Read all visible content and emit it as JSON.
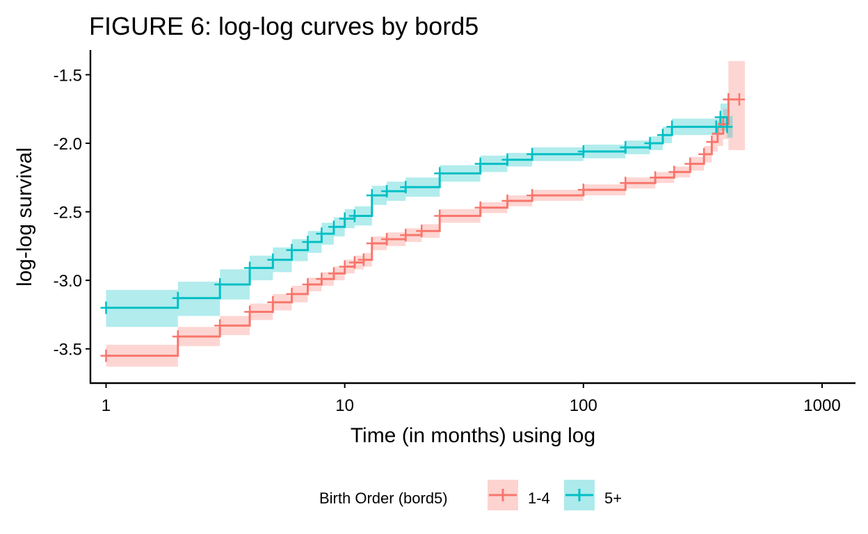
{
  "chart_data": {
    "type": "line",
    "title": "FIGURE 6: log-log curves by bord5",
    "xlabel": "Time (in months) using log",
    "ylabel": "log-log survival",
    "x_scale": "log10",
    "xlim": [
      0.86,
      1380
    ],
    "ylim": [
      -3.75,
      -1.32
    ],
    "x_ticks": [
      1,
      10,
      100,
      1000
    ],
    "x_tick_labels": [
      "1",
      "10",
      "100",
      "1000"
    ],
    "y_ticks": [
      -3.5,
      -3.0,
      -2.5,
      -2.0,
      -1.5
    ],
    "y_tick_labels": [
      "-3.5",
      "-3.0",
      "-2.5",
      "-2.0",
      "-1.5"
    ],
    "grid": false,
    "legend": {
      "title": "Birth Order (bord5)",
      "position": "bottom"
    },
    "series": [
      {
        "name": "1-4",
        "color": "#F8766D",
        "band_color": "#F8766D",
        "points": [
          {
            "t": 1,
            "y": -3.55,
            "lo": -3.63,
            "hi": -3.47
          },
          {
            "t": 2,
            "y": -3.41,
            "lo": -3.48,
            "hi": -3.34
          },
          {
            "t": 3,
            "y": -3.33,
            "lo": -3.4,
            "hi": -3.26
          },
          {
            "t": 4,
            "y": -3.23,
            "lo": -3.29,
            "hi": -3.17
          },
          {
            "t": 5,
            "y": -3.16,
            "lo": -3.22,
            "hi": -3.1
          },
          {
            "t": 6,
            "y": -3.1,
            "lo": -3.16,
            "hi": -3.04
          },
          {
            "t": 7,
            "y": -3.03,
            "lo": -3.08,
            "hi": -2.98
          },
          {
            "t": 8,
            "y": -2.99,
            "lo": -3.04,
            "hi": -2.94
          },
          {
            "t": 9,
            "y": -2.95,
            "lo": -3.0,
            "hi": -2.9
          },
          {
            "t": 10,
            "y": -2.9,
            "lo": -2.95,
            "hi": -2.85
          },
          {
            "t": 11,
            "y": -2.87,
            "lo": -2.92,
            "hi": -2.82
          },
          {
            "t": 12,
            "y": -2.85,
            "lo": -2.9,
            "hi": -2.8
          },
          {
            "t": 13,
            "y": -2.73,
            "lo": -2.78,
            "hi": -2.68
          },
          {
            "t": 15,
            "y": -2.7,
            "lo": -2.75,
            "hi": -2.65
          },
          {
            "t": 18,
            "y": -2.67,
            "lo": -2.72,
            "hi": -2.62
          },
          {
            "t": 21,
            "y": -2.64,
            "lo": -2.69,
            "hi": -2.59
          },
          {
            "t": 25,
            "y": -2.53,
            "lo": -2.58,
            "hi": -2.48
          },
          {
            "t": 37,
            "y": -2.47,
            "lo": -2.51,
            "hi": -2.43
          },
          {
            "t": 48,
            "y": -2.42,
            "lo": -2.46,
            "hi": -2.38
          },
          {
            "t": 61,
            "y": -2.38,
            "lo": -2.42,
            "hi": -2.34
          },
          {
            "t": 100,
            "y": -2.34,
            "lo": -2.38,
            "hi": -2.3
          },
          {
            "t": 150,
            "y": -2.29,
            "lo": -2.33,
            "hi": -2.25
          },
          {
            "t": 200,
            "y": -2.25,
            "lo": -2.29,
            "hi": -2.21
          },
          {
            "t": 240,
            "y": -2.21,
            "lo": -2.25,
            "hi": -2.17
          },
          {
            "t": 280,
            "y": -2.15,
            "lo": -2.2,
            "hi": -2.1
          },
          {
            "t": 320,
            "y": -2.08,
            "lo": -2.14,
            "hi": -2.02
          },
          {
            "t": 345,
            "y": -1.99,
            "lo": -2.06,
            "hi": -1.92
          },
          {
            "t": 365,
            "y": -1.93,
            "lo": -2.02,
            "hi": -1.84
          },
          {
            "t": 385,
            "y": -1.86,
            "lo": -1.97,
            "hi": -1.75
          },
          {
            "t": 405,
            "y": -1.68,
            "lo": -2.05,
            "hi": -1.4
          },
          {
            "t": 450,
            "y": -1.68,
            "lo": -2.05,
            "hi": -1.4
          }
        ]
      },
      {
        "name": "5+",
        "color": "#00BFC4",
        "band_color": "#00BFC4",
        "points": [
          {
            "t": 1,
            "y": -3.2,
            "lo": -3.34,
            "hi": -3.07
          },
          {
            "t": 2,
            "y": -3.13,
            "lo": -3.26,
            "hi": -3.01
          },
          {
            "t": 3,
            "y": -3.03,
            "lo": -3.14,
            "hi": -2.92
          },
          {
            "t": 4,
            "y": -2.91,
            "lo": -3.0,
            "hi": -2.82
          },
          {
            "t": 5,
            "y": -2.85,
            "lo": -2.94,
            "hi": -2.76
          },
          {
            "t": 6,
            "y": -2.78,
            "lo": -2.86,
            "hi": -2.7
          },
          {
            "t": 7,
            "y": -2.72,
            "lo": -2.8,
            "hi": -2.64
          },
          {
            "t": 8,
            "y": -2.66,
            "lo": -2.74,
            "hi": -2.58
          },
          {
            "t": 9,
            "y": -2.61,
            "lo": -2.68,
            "hi": -2.54
          },
          {
            "t": 10,
            "y": -2.55,
            "lo": -2.62,
            "hi": -2.48
          },
          {
            "t": 11,
            "y": -2.53,
            "lo": -2.6,
            "hi": -2.46
          },
          {
            "t": 13,
            "y": -2.38,
            "lo": -2.45,
            "hi": -2.31
          },
          {
            "t": 15,
            "y": -2.35,
            "lo": -2.42,
            "hi": -2.28
          },
          {
            "t": 18,
            "y": -2.32,
            "lo": -2.39,
            "hi": -2.25
          },
          {
            "t": 25,
            "y": -2.22,
            "lo": -2.28,
            "hi": -2.16
          },
          {
            "t": 37,
            "y": -2.15,
            "lo": -2.21,
            "hi": -2.09
          },
          {
            "t": 48,
            "y": -2.12,
            "lo": -2.17,
            "hi": -2.07
          },
          {
            "t": 61,
            "y": -2.08,
            "lo": -2.13,
            "hi": -2.03
          },
          {
            "t": 100,
            "y": -2.06,
            "lo": -2.11,
            "hi": -2.01
          },
          {
            "t": 150,
            "y": -2.03,
            "lo": -2.08,
            "hi": -1.98
          },
          {
            "t": 190,
            "y": -2.0,
            "lo": -2.05,
            "hi": -1.95
          },
          {
            "t": 215,
            "y": -1.94,
            "lo": -2.0,
            "hi": -1.88
          },
          {
            "t": 235,
            "y": -1.88,
            "lo": -1.94,
            "hi": -1.82
          },
          {
            "t": 360,
            "y": -1.88,
            "lo": -1.94,
            "hi": -1.82
          },
          {
            "t": 375,
            "y": -1.81,
            "lo": -1.91,
            "hi": -1.71
          },
          {
            "t": 400,
            "y": -1.88,
            "lo": -1.96,
            "hi": -1.8
          }
        ]
      }
    ]
  }
}
